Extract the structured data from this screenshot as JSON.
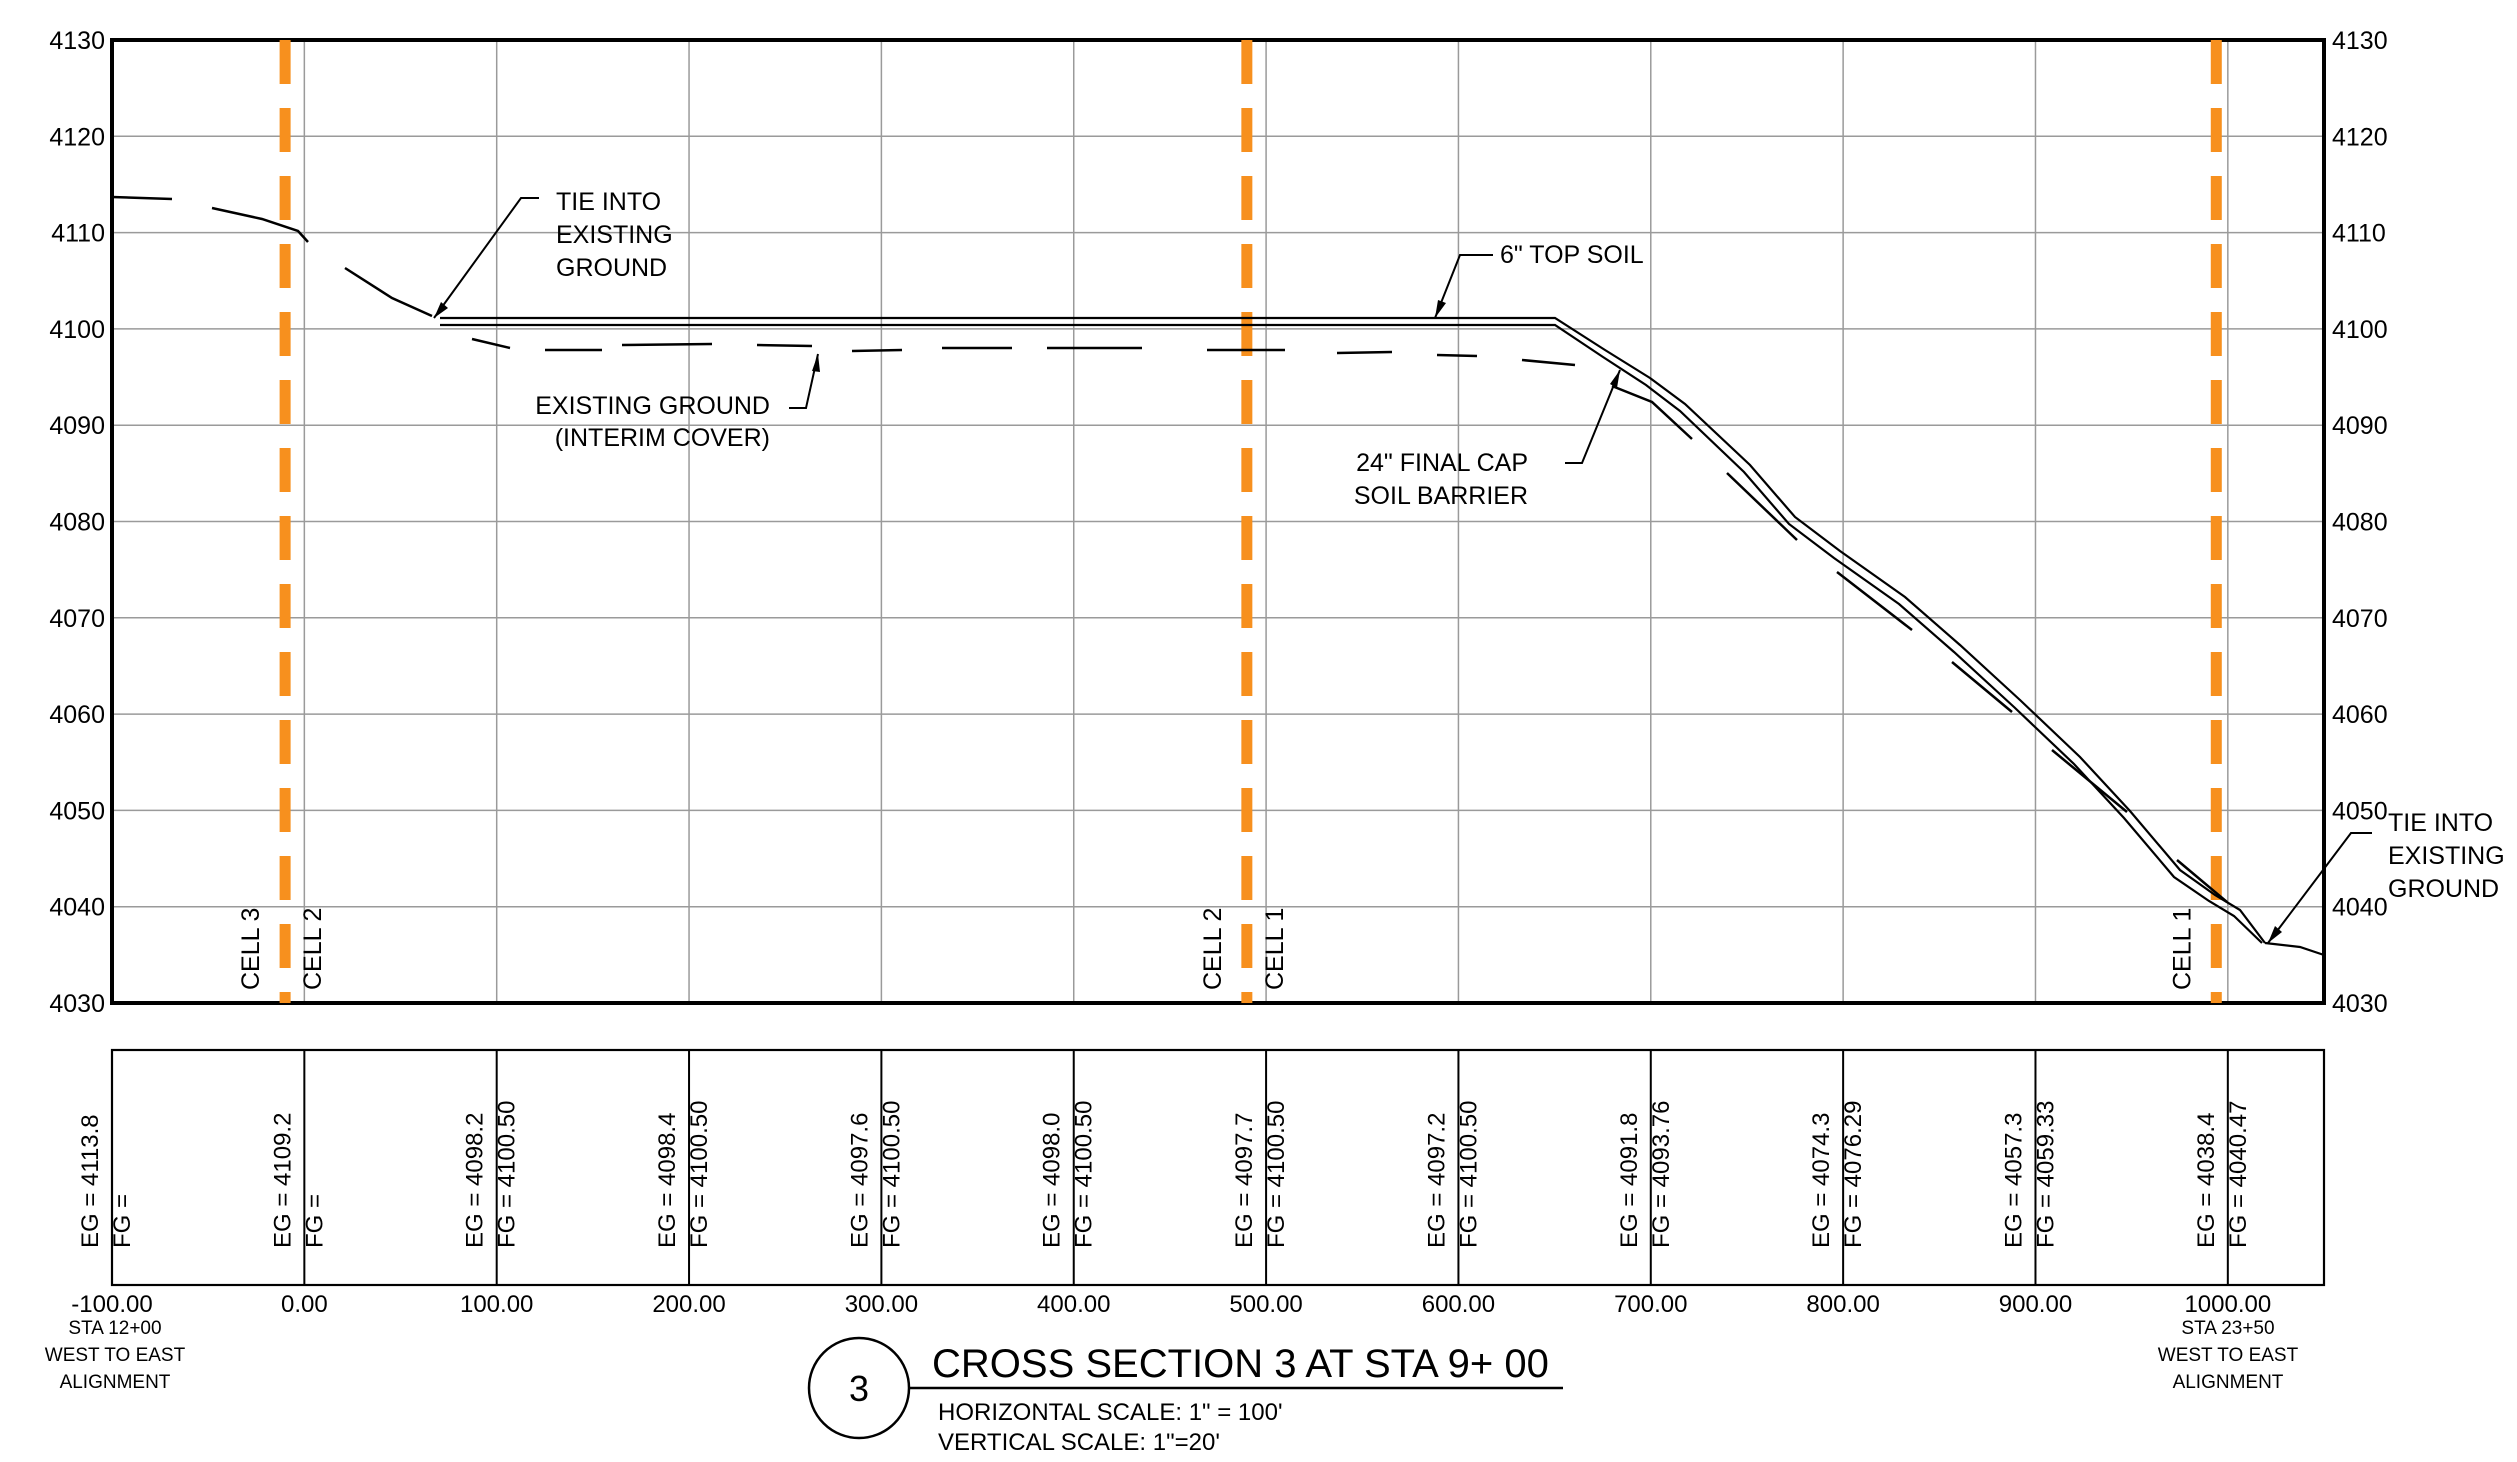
{
  "y_axis": {
    "ticks": [
      "4130",
      "4120",
      "4110",
      "4100",
      "4090",
      "4080",
      "4070",
      "4060",
      "4050",
      "4040",
      "4030"
    ]
  },
  "cells": [
    {
      "left_label": "CELL 3",
      "right_label": "CELL 2",
      "station": -10
    },
    {
      "left_label": "CELL 2",
      "right_label": "CELL 1",
      "station": 490
    },
    {
      "left_label": "CELL 1",
      "right_label": "",
      "station": 994
    }
  ],
  "callouts": {
    "tie_left": [
      "TIE INTO",
      "EXISTING",
      "GROUND"
    ],
    "top_soil": "6\" TOP SOIL",
    "existing_ground": [
      "EXISTING GROUND",
      "(INTERIM COVER)"
    ],
    "final_cap": [
      "24\" FINAL CAP",
      "SOIL BARRIER"
    ],
    "tie_right": [
      "TIE INTO",
      "EXISTING",
      "GROUND"
    ]
  },
  "profile_table": {
    "columns": [
      {
        "eg": "EG = 4113.8",
        "fg": "FG =",
        "station": "-100.00"
      },
      {
        "eg": "EG = 4109.2",
        "fg": "FG =",
        "station": "0.00"
      },
      {
        "eg": "EG = 4098.2",
        "fg": "FG = 4100.50",
        "station": "100.00"
      },
      {
        "eg": "EG = 4098.4",
        "fg": "FG = 4100.50",
        "station": "200.00"
      },
      {
        "eg": "EG = 4097.6",
        "fg": "FG = 4100.50",
        "station": "300.00"
      },
      {
        "eg": "EG = 4098.0",
        "fg": "FG = 4100.50",
        "station": "400.00"
      },
      {
        "eg": "EG = 4097.7",
        "fg": "FG = 4100.50",
        "station": "500.00"
      },
      {
        "eg": "EG = 4097.2",
        "fg": "FG = 4100.50",
        "station": "600.00"
      },
      {
        "eg": "EG = 4091.8",
        "fg": "FG = 4093.76",
        "station": "700.00"
      },
      {
        "eg": "EG = 4074.3",
        "fg": "FG = 4076.29",
        "station": "800.00"
      },
      {
        "eg": "EG = 4057.3",
        "fg": "FG = 4059.33",
        "station": "900.00"
      },
      {
        "eg": "EG = 4038.4",
        "fg": "FG = 4040.47",
        "station": "1000.00"
      }
    ]
  },
  "station_notes": {
    "left": [
      "STA 12+00",
      "WEST TO EAST",
      "ALIGNMENT"
    ],
    "right": [
      "STA 23+50",
      "WEST TO EAST",
      "ALIGNMENT"
    ]
  },
  "title_block": {
    "number": "3",
    "title": "CROSS SECTION 3 AT STA 9+ 00",
    "horizontal_scale": "HORIZONTAL SCALE: 1\" = 100'",
    "vertical_scale": "VERTICAL SCALE: 1\"=20'"
  },
  "colors": {
    "cell_boundary": "#F7901E",
    "grid": "#9a9a9a",
    "ink": "#000000"
  }
}
